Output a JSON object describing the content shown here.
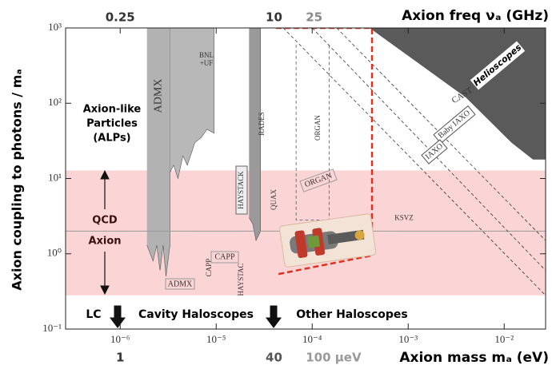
{
  "chart_data": {
    "type": "exclusion",
    "top_label": "Axion freq νₐ (GHz)",
    "x_label": "Axion mass mₐ (eV)",
    "y_label": "Axion coupling to photons / mₐ",
    "xscale": "log",
    "yscale": "log",
    "xlim": [
      2.7e-07,
      0.027
    ],
    "ylim": [
      0.1,
      1000
    ],
    "xticks": [
      {
        "value": 1e-06,
        "label": "10⁻⁶"
      },
      {
        "value": 1e-05,
        "label": "10⁻⁵"
      },
      {
        "value": 0.0001,
        "label": "10⁻⁴"
      },
      {
        "value": 0.001,
        "label": "10⁻³"
      },
      {
        "value": 0.01,
        "label": "10⁻²"
      }
    ],
    "yticks": [
      {
        "value": 0.1,
        "label": "10⁻¹"
      },
      {
        "value": 1,
        "label": "10⁰"
      },
      {
        "value": 10,
        "label": "10¹"
      },
      {
        "value": 100,
        "label": "10²"
      },
      {
        "value": 1000,
        "label": "10³"
      }
    ],
    "top_ticks": [
      {
        "value": 1e-06,
        "label": "0.25",
        "color": "#333333"
      },
      {
        "value": 4e-05,
        "label": "10",
        "color": "#333333"
      },
      {
        "value": 0.0001,
        "label": "25",
        "color": "#8a8a8a"
      }
    ],
    "bottom_ticks": [
      {
        "value": 1e-06,
        "label": "1",
        "color": "#333333"
      },
      {
        "value": 4e-05,
        "label": "40",
        "color": "#555555"
      },
      {
        "value": 0.0001,
        "label": "100 μeV",
        "color": "#9a9a9a"
      }
    ],
    "band": {
      "y": [
        0.28,
        12.8
      ],
      "color": "#fbd5d5"
    },
    "hline": {
      "label": "KSVZ",
      "y": 2,
      "color": "#999999"
    },
    "regions": [
      {
        "label": "ADMX",
        "color": "#b2b2b2",
        "x": [
          1.9e-06,
          3.3e-06,
          3.3e-06,
          3e-06,
          2.8e-06,
          2.6e-06,
          2.4e-06,
          2.2e-06,
          1.9e-06
        ],
        "y": [
          1000,
          1000,
          1.3,
          0.5,
          1.3,
          0.6,
          1.3,
          0.8,
          1.3
        ]
      },
      {
        "color": "#b8b8b8",
        "x": [
          3.3e-06,
          9.5e-06,
          9.5e-06,
          8e-06,
          7e-06,
          6e-06,
          5e-06,
          4.5e-06,
          4e-06,
          3.6e-06,
          3.3e-06
        ],
        "y": [
          1000,
          1000,
          40,
          45,
          35,
          30,
          15,
          20,
          10,
          15,
          12
        ]
      },
      {
        "color": "#9a9a9a",
        "x": [
          2.2e-05,
          2.9e-05,
          2.9e-05,
          2.6e-05,
          2.4e-05,
          2.2e-05
        ],
        "y": [
          1000,
          1000,
          2,
          1.5,
          2.5,
          3
        ]
      },
      {
        "color": "#5a5a5a",
        "x": [
          0.0004,
          0.027,
          0.027,
          0.02,
          0.012,
          0.004,
          0.0004
        ],
        "y": [
          1000,
          1000,
          18,
          18,
          30,
          120,
          1000
        ]
      }
    ],
    "lines": [
      {
        "color": "#333333",
        "x": [
          0.00018,
          0.027
        ],
        "y": [
          1000,
          1.5
        ]
      },
      {
        "color": "#333333",
        "x": [
          0.0001,
          0.027
        ],
        "y": [
          1000,
          0.6
        ]
      },
      {
        "color": "#333333",
        "x": [
          5e-05,
          0.027
        ],
        "y": [
          1000,
          0.28
        ]
      },
      {
        "color": "#555555",
        "x": [
          6.8e-05,
          6.8e-05,
          0.00015,
          0.00015
        ],
        "y": [
          600,
          2.8,
          2.8,
          600
        ]
      }
    ],
    "box": {
      "color": "#e0301e",
      "x": [
        4.2e-05,
        0.00042,
        0.00042,
        4.2e-05
      ],
      "y": [
        1000,
        1000,
        0.95,
        0.53
      ]
    },
    "labels": [
      "Axion-like",
      "Particles",
      "(ALPs)",
      "QCD",
      "Axion",
      "LC",
      "Cavity Haloscopes",
      "Other Haloscopes",
      "BNL",
      "+UF",
      "RADES",
      "ORGAN",
      "ORGAN",
      "HAYSTACK",
      "CAPP",
      "CAPP",
      "HAYSTAC",
      "QUAX",
      "ADMX",
      "CAST",
      "Baby IAXO",
      "IAXO",
      "Helioscopes"
    ]
  }
}
